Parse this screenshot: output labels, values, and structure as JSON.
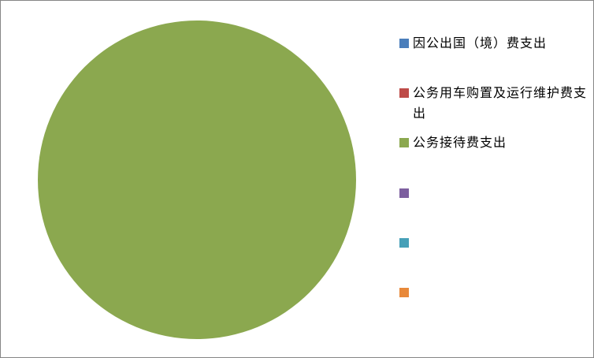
{
  "chart_data": {
    "type": "pie",
    "categories": [
      "因公出国（境）费支出",
      "公务用车购置及运行维护费支出",
      "公务接待费支出",
      "",
      "",
      ""
    ],
    "values": [
      0,
      0,
      100,
      0,
      0,
      0
    ],
    "colors": [
      "#4A7EBB",
      "#BE4B48",
      "#8BA84F",
      "#7D5F9F",
      "#46A0B8",
      "#E8893A"
    ],
    "legend_position": "right"
  }
}
